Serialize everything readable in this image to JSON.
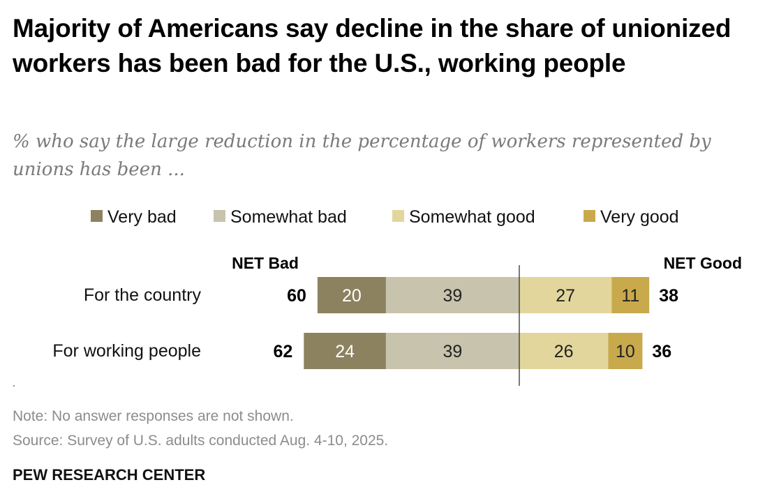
{
  "header": {
    "title": "Majority of Americans say decline in the share of unionized workers has been bad for the U.S., working people",
    "subtitle": "% who say the large reduction in the percentage of workers represented by unions has been ..."
  },
  "chart_data": {
    "type": "bar",
    "orientation": "horizontal-diverging",
    "categories": [
      "For the country",
      "For working people"
    ],
    "series": [
      {
        "name": "Very bad",
        "side": "bad",
        "color": "#8c8260",
        "label_color": "#ffffff",
        "values": [
          20,
          24
        ]
      },
      {
        "name": "Somewhat bad",
        "side": "bad",
        "color": "#c8c3ad",
        "label_color": "#222222",
        "values": [
          39,
          39
        ]
      },
      {
        "name": "Somewhat good",
        "side": "good",
        "color": "#e3d69c",
        "label_color": "#222222",
        "values": [
          27,
          26
        ]
      },
      {
        "name": "Very good",
        "side": "good",
        "color": "#c8aa4c",
        "label_color": "#222222",
        "values": [
          11,
          10
        ]
      }
    ],
    "net_bad": {
      "label": "NET Bad",
      "values": [
        60,
        62
      ]
    },
    "net_good": {
      "label": "NET Good",
      "values": [
        38,
        36
      ]
    },
    "legend_position": "top"
  },
  "footer": {
    "note": "Note: No answer responses are not shown.",
    "source": "Source: Survey of U.S. adults conducted Aug. 4-10, 2025.",
    "brand": "PEW RESEARCH CENTER"
  }
}
